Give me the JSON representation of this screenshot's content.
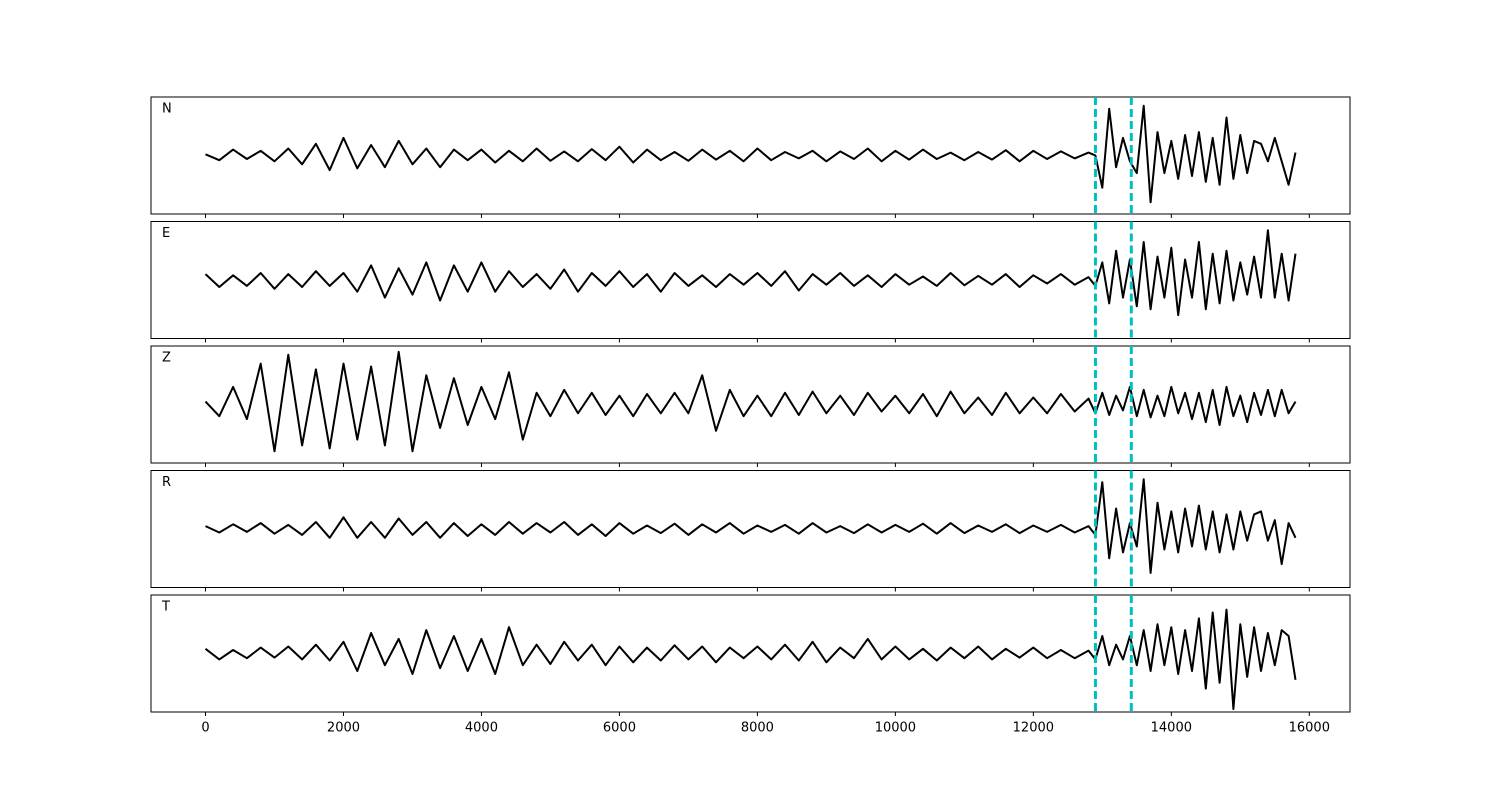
{
  "chart_data": {
    "type": "line",
    "x": [
      0,
      200,
      400,
      600,
      800,
      1000,
      1200,
      1400,
      1600,
      1800,
      2000,
      2200,
      2400,
      2600,
      2800,
      3000,
      3200,
      3400,
      3600,
      3800,
      4000,
      4200,
      4400,
      4600,
      4800,
      5000,
      5200,
      5400,
      5600,
      5800,
      6000,
      6200,
      6400,
      6600,
      6800,
      7000,
      7200,
      7400,
      7600,
      7800,
      8000,
      8200,
      8400,
      8600,
      8800,
      9000,
      9200,
      9400,
      9600,
      9800,
      10000,
      10200,
      10400,
      10600,
      10800,
      11000,
      11200,
      11400,
      11600,
      11800,
      12000,
      12200,
      12400,
      12600,
      12800,
      12900,
      13000,
      13100,
      13200,
      13300,
      13400,
      13500,
      13600,
      13700,
      13800,
      13900,
      14000,
      14100,
      14200,
      14300,
      14400,
      14500,
      14600,
      14700,
      14800,
      14900,
      15000,
      15100,
      15200,
      15300,
      15400,
      15500,
      15600,
      15700,
      15800
    ],
    "series": [
      {
        "name": "N",
        "color": "#000000",
        "values": [
          0.02,
          -0.08,
          0.1,
          -0.06,
          0.08,
          -0.1,
          0.12,
          -0.15,
          0.2,
          -0.25,
          0.3,
          -0.22,
          0.18,
          -0.2,
          0.25,
          -0.15,
          0.12,
          -0.2,
          0.1,
          -0.08,
          0.1,
          -0.12,
          0.08,
          -0.1,
          0.12,
          -0.09,
          0.07,
          -0.1,
          0.11,
          -0.08,
          0.15,
          -0.12,
          0.1,
          -0.08,
          0.06,
          -0.09,
          0.1,
          -0.07,
          0.08,
          -0.1,
          0.12,
          -0.08,
          0.06,
          -0.05,
          0.08,
          -0.1,
          0.07,
          -0.06,
          0.12,
          -0.1,
          0.08,
          -0.07,
          0.1,
          -0.06,
          0.05,
          -0.08,
          0.06,
          -0.07,
          0.09,
          -0.1,
          0.08,
          -0.06,
          0.07,
          -0.05,
          0.05,
          0.0,
          -0.55,
          0.8,
          -0.2,
          0.3,
          -0.1,
          -0.3,
          0.85,
          -0.8,
          0.4,
          -0.3,
          0.25,
          -0.4,
          0.35,
          -0.35,
          0.4,
          -0.45,
          0.3,
          -0.5,
          0.65,
          -0.4,
          0.35,
          -0.3,
          0.25,
          0.2,
          -0.1,
          0.3,
          -0.1,
          -0.5,
          0.05
        ]
      },
      {
        "name": "E",
        "color": "#000000",
        "values": [
          0.1,
          -0.12,
          0.08,
          -0.1,
          0.12,
          -0.15,
          0.1,
          -0.12,
          0.15,
          -0.1,
          0.12,
          -0.2,
          0.25,
          -0.3,
          0.2,
          -0.25,
          0.3,
          -0.35,
          0.25,
          -0.2,
          0.3,
          -0.2,
          0.15,
          -0.12,
          0.1,
          -0.15,
          0.18,
          -0.2,
          0.12,
          -0.1,
          0.15,
          -0.12,
          0.1,
          -0.2,
          0.12,
          -0.1,
          0.08,
          -0.12,
          0.1,
          -0.08,
          0.12,
          -0.1,
          0.15,
          -0.18,
          0.1,
          -0.08,
          0.12,
          -0.1,
          0.08,
          -0.12,
          0.1,
          -0.08,
          0.06,
          -0.1,
          0.12,
          -0.09,
          0.07,
          -0.08,
          0.1,
          -0.12,
          0.08,
          -0.06,
          0.1,
          -0.08,
          0.05,
          -0.1,
          0.3,
          -0.4,
          0.5,
          -0.3,
          0.35,
          -0.45,
          0.65,
          -0.5,
          0.4,
          -0.3,
          0.55,
          -0.6,
          0.35,
          -0.3,
          0.65,
          -0.5,
          0.45,
          -0.4,
          0.5,
          -0.35,
          0.3,
          -0.25,
          0.4,
          -0.3,
          0.85,
          -0.3,
          0.45,
          -0.35,
          0.45
        ]
      },
      {
        "name": "Z",
        "color": "#000000",
        "values": [
          0.05,
          -0.2,
          0.3,
          -0.25,
          0.7,
          -0.8,
          0.85,
          -0.7,
          0.6,
          -0.75,
          0.7,
          -0.6,
          0.65,
          -0.7,
          0.9,
          -0.8,
          0.5,
          -0.4,
          0.45,
          -0.35,
          0.3,
          -0.25,
          0.55,
          -0.6,
          0.2,
          -0.2,
          0.25,
          -0.15,
          0.2,
          -0.18,
          0.15,
          -0.2,
          0.18,
          -0.15,
          0.2,
          -0.15,
          0.5,
          -0.45,
          0.25,
          -0.2,
          0.15,
          -0.2,
          0.2,
          -0.18,
          0.22,
          -0.15,
          0.15,
          -0.18,
          0.2,
          -0.12,
          0.15,
          -0.15,
          0.18,
          -0.2,
          0.22,
          -0.15,
          0.12,
          -0.18,
          0.2,
          -0.15,
          0.12,
          -0.15,
          0.18,
          -0.12,
          0.1,
          -0.15,
          0.2,
          -0.18,
          0.15,
          -0.1,
          0.3,
          -0.2,
          0.25,
          -0.22,
          0.15,
          -0.2,
          0.3,
          -0.15,
          0.2,
          -0.25,
          0.2,
          -0.3,
          0.25,
          -0.35,
          0.3,
          -0.2,
          0.15,
          -0.3,
          0.2,
          -0.18,
          0.25,
          -0.2,
          0.25,
          -0.15,
          0.05
        ]
      },
      {
        "name": "R",
        "color": "#000000",
        "values": [
          0.05,
          -0.06,
          0.08,
          -0.05,
          0.1,
          -0.08,
          0.07,
          -0.1,
          0.12,
          -0.15,
          0.2,
          -0.15,
          0.12,
          -0.15,
          0.18,
          -0.1,
          0.12,
          -0.15,
          0.1,
          -0.12,
          0.08,
          -0.1,
          0.12,
          -0.08,
          0.1,
          -0.06,
          0.12,
          -0.1,
          0.08,
          -0.12,
          0.1,
          -0.08,
          0.06,
          -0.07,
          0.09,
          -0.1,
          0.08,
          -0.06,
          0.1,
          -0.08,
          0.06,
          -0.05,
          0.07,
          -0.08,
          0.1,
          -0.06,
          0.05,
          -0.07,
          0.08,
          -0.06,
          0.07,
          -0.05,
          0.09,
          -0.08,
          0.1,
          -0.07,
          0.06,
          -0.05,
          0.08,
          -0.07,
          0.06,
          -0.05,
          0.07,
          -0.06,
          0.05,
          -0.1,
          0.8,
          -0.5,
          0.35,
          -0.4,
          0.1,
          -0.3,
          0.85,
          -0.75,
          0.45,
          -0.35,
          0.3,
          -0.4,
          0.35,
          -0.3,
          0.4,
          -0.35,
          0.3,
          -0.4,
          0.25,
          -0.35,
          0.3,
          -0.2,
          0.25,
          0.3,
          -0.2,
          0.15,
          -0.6,
          0.1,
          -0.15
        ]
      },
      {
        "name": "T",
        "color": "#000000",
        "values": [
          0.08,
          -0.1,
          0.06,
          -0.08,
          0.1,
          -0.07,
          0.12,
          -0.1,
          0.15,
          -0.12,
          0.2,
          -0.3,
          0.35,
          -0.2,
          0.25,
          -0.35,
          0.4,
          -0.25,
          0.3,
          -0.3,
          0.25,
          -0.35,
          0.45,
          -0.2,
          0.15,
          -0.18,
          0.2,
          -0.12,
          0.15,
          -0.2,
          0.12,
          -0.15,
          0.1,
          -0.12,
          0.14,
          -0.1,
          0.12,
          -0.15,
          0.1,
          -0.08,
          0.12,
          -0.1,
          0.15,
          -0.12,
          0.2,
          -0.15,
          0.1,
          -0.08,
          0.25,
          -0.1,
          0.12,
          -0.1,
          0.08,
          -0.12,
          0.1,
          -0.08,
          0.12,
          -0.1,
          0.08,
          -0.07,
          0.1,
          -0.08,
          0.06,
          -0.08,
          0.05,
          -0.1,
          0.3,
          -0.2,
          0.15,
          -0.1,
          0.3,
          -0.2,
          0.4,
          -0.3,
          0.5,
          -0.2,
          0.45,
          -0.35,
          0.4,
          -0.3,
          0.6,
          -0.6,
          0.7,
          -0.5,
          0.75,
          -0.95,
          0.5,
          -0.4,
          0.45,
          -0.3,
          0.35,
          -0.2,
          0.4,
          0.3,
          -0.45
        ]
      }
    ],
    "vlines": [
      12900,
      13420
    ],
    "vline_color": "#00bfbf",
    "xlim": [
      -790,
      16590
    ],
    "xticks": [
      0,
      2000,
      4000,
      6000,
      8000,
      10000,
      12000,
      14000,
      16000
    ],
    "ylim": [
      -1,
      1
    ]
  }
}
